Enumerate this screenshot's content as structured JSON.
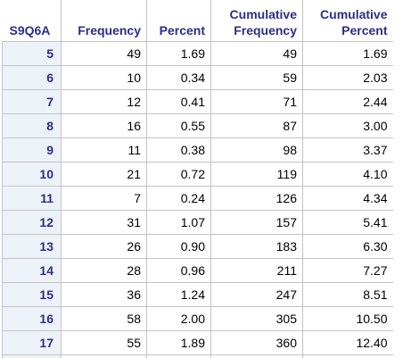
{
  "table": {
    "headers": {
      "variable": "S9Q6A",
      "frequency": "Frequency",
      "percent": "Percent",
      "cum_freq_line1": "Cumulative",
      "cum_freq_line2": "Frequency",
      "cum_pct_line1": "Cumulative",
      "cum_pct_line2": "Percent"
    },
    "rows": [
      {
        "value": "5",
        "frequency": "49",
        "percent": "1.69",
        "cum_frequency": "49",
        "cum_percent": "1.69"
      },
      {
        "value": "6",
        "frequency": "10",
        "percent": "0.34",
        "cum_frequency": "59",
        "cum_percent": "2.03"
      },
      {
        "value": "7",
        "frequency": "12",
        "percent": "0.41",
        "cum_frequency": "71",
        "cum_percent": "2.44"
      },
      {
        "value": "8",
        "frequency": "16",
        "percent": "0.55",
        "cum_frequency": "87",
        "cum_percent": "3.00"
      },
      {
        "value": "9",
        "frequency": "11",
        "percent": "0.38",
        "cum_frequency": "98",
        "cum_percent": "3.37"
      },
      {
        "value": "10",
        "frequency": "21",
        "percent": "0.72",
        "cum_frequency": "119",
        "cum_percent": "4.10"
      },
      {
        "value": "11",
        "frequency": "7",
        "percent": "0.24",
        "cum_frequency": "126",
        "cum_percent": "4.34"
      },
      {
        "value": "12",
        "frequency": "31",
        "percent": "1.07",
        "cum_frequency": "157",
        "cum_percent": "5.41"
      },
      {
        "value": "13",
        "frequency": "26",
        "percent": "0.90",
        "cum_frequency": "183",
        "cum_percent": "6.30"
      },
      {
        "value": "14",
        "frequency": "28",
        "percent": "0.96",
        "cum_frequency": "211",
        "cum_percent": "7.27"
      },
      {
        "value": "15",
        "frequency": "36",
        "percent": "1.24",
        "cum_frequency": "247",
        "cum_percent": "8.51"
      },
      {
        "value": "16",
        "frequency": "58",
        "percent": "2.00",
        "cum_frequency": "305",
        "cum_percent": "10.50"
      },
      {
        "value": "17",
        "frequency": "55",
        "percent": "1.89",
        "cum_frequency": "360",
        "cum_percent": "12.40"
      }
    ]
  }
}
